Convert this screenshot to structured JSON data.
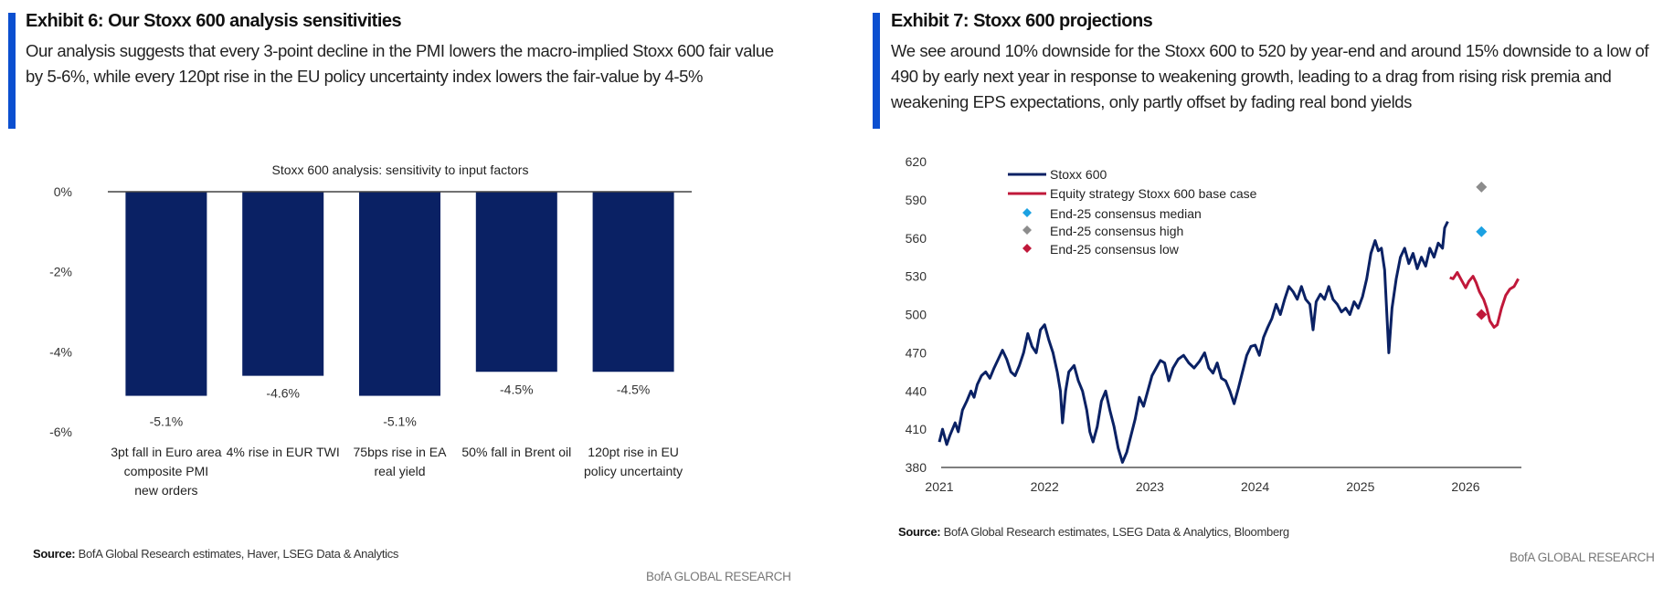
{
  "left": {
    "title": "Exhibit 6: Our Stoxx 600 analysis sensitivities",
    "subtitle": "Our analysis suggests that every 3-point decline in the PMI lowers the macro-implied Stoxx 600 fair value by 5-6%, while every 120pt rise in the EU policy uncertainty index lowers the fair-value by 4-5%",
    "source_label": "Source:",
    "source_text": "BofA Global Research estimates, Haver, LSEG Data & Analytics",
    "brand": "BofA GLOBAL RESEARCH"
  },
  "right": {
    "title": "Exhibit 7: Stoxx 600 projections",
    "subtitle": "We see around 10% downside for the Stoxx 600 to 520 by year-end and around 15% downside to a low of 490 by early next year in response to weakening growth, leading to a drag from rising risk premia and weakening EPS expectations, only partly offset by fading real bond yields",
    "source_label": "Source:",
    "source_text": "BofA Global Research estimates, LSEG Data & Analytics, Bloomberg",
    "brand": "BofA GLOBAL RESEARCH"
  },
  "chart_data": [
    {
      "type": "bar",
      "title": "Stoxx 600 analysis: sensitivity to input factors",
      "categories": [
        [
          "3pt fall in Euro area",
          "composite PMI",
          "new orders"
        ],
        [
          "4% rise in EUR TWI"
        ],
        [
          "75bps rise in EA",
          "real yield"
        ],
        [
          "50% fall in Brent oil"
        ],
        [
          "120pt rise in EU",
          "policy uncertainty"
        ]
      ],
      "values": [
        -5.1,
        -4.6,
        -5.1,
        -4.5,
        -4.5
      ],
      "data_labels": [
        "-5.1%",
        "-4.6%",
        "-5.1%",
        "-4.5%",
        "-4.5%"
      ],
      "ylim": [
        -6,
        0
      ],
      "yticks": [
        0,
        -2,
        -4,
        -6
      ],
      "ytick_labels": [
        "0%",
        "-2%",
        "-4%",
        "-6%"
      ],
      "color": "#0a2164",
      "grid": false
    },
    {
      "type": "line",
      "xlim": [
        2021,
        2026.7
      ],
      "ylim": [
        380,
        620
      ],
      "yticks": [
        620,
        590,
        560,
        530,
        500,
        470,
        440,
        410,
        380
      ],
      "xticks": [
        2021,
        2022,
        2023,
        2024,
        2025,
        2026
      ],
      "xtick_labels": [
        "2021",
        "2022",
        "2023",
        "2024",
        "2025",
        "2026"
      ],
      "legend_position": "top-left",
      "grid": false,
      "series": [
        {
          "name": "Stoxx 600",
          "color": "#0a2164",
          "points": [
            [
              2021.0,
              400
            ],
            [
              2021.03,
              410
            ],
            [
              2021.07,
              398
            ],
            [
              2021.1,
              405
            ],
            [
              2021.15,
              415
            ],
            [
              2021.18,
              408
            ],
            [
              2021.22,
              425
            ],
            [
              2021.26,
              432
            ],
            [
              2021.3,
              440
            ],
            [
              2021.33,
              435
            ],
            [
              2021.36,
              445
            ],
            [
              2021.4,
              452
            ],
            [
              2021.44,
              455
            ],
            [
              2021.48,
              450
            ],
            [
              2021.52,
              458
            ],
            [
              2021.56,
              465
            ],
            [
              2021.6,
              472
            ],
            [
              2021.64,
              465
            ],
            [
              2021.68,
              455
            ],
            [
              2021.72,
              452
            ],
            [
              2021.76,
              460
            ],
            [
              2021.8,
              470
            ],
            [
              2021.84,
              485
            ],
            [
              2021.88,
              475
            ],
            [
              2021.92,
              470
            ],
            [
              2021.96,
              488
            ],
            [
              2022.0,
              492
            ],
            [
              2022.04,
              480
            ],
            [
              2022.08,
              470
            ],
            [
              2022.12,
              455
            ],
            [
              2022.15,
              440
            ],
            [
              2022.17,
              415
            ],
            [
              2022.2,
              440
            ],
            [
              2022.23,
              455
            ],
            [
              2022.28,
              460
            ],
            [
              2022.32,
              448
            ],
            [
              2022.36,
              440
            ],
            [
              2022.4,
              425
            ],
            [
              2022.43,
              408
            ],
            [
              2022.46,
              400
            ],
            [
              2022.5,
              412
            ],
            [
              2022.54,
              432
            ],
            [
              2022.58,
              440
            ],
            [
              2022.62,
              425
            ],
            [
              2022.66,
              412
            ],
            [
              2022.7,
              395
            ],
            [
              2022.74,
              384
            ],
            [
              2022.78,
              392
            ],
            [
              2022.82,
              405
            ],
            [
              2022.86,
              418
            ],
            [
              2022.9,
              435
            ],
            [
              2022.94,
              428
            ],
            [
              2022.98,
              440
            ],
            [
              2023.02,
              452
            ],
            [
              2023.06,
              458
            ],
            [
              2023.1,
              464
            ],
            [
              2023.14,
              462
            ],
            [
              2023.18,
              448
            ],
            [
              2023.22,
              458
            ],
            [
              2023.27,
              465
            ],
            [
              2023.32,
              468
            ],
            [
              2023.37,
              462
            ],
            [
              2023.42,
              458
            ],
            [
              2023.47,
              463
            ],
            [
              2023.52,
              470
            ],
            [
              2023.56,
              458
            ],
            [
              2023.6,
              454
            ],
            [
              2023.64,
              462
            ],
            [
              2023.68,
              450
            ],
            [
              2023.72,
              448
            ],
            [
              2023.76,
              440
            ],
            [
              2023.8,
              430
            ],
            [
              2023.84,
              442
            ],
            [
              2023.88,
              455
            ],
            [
              2023.92,
              468
            ],
            [
              2023.96,
              475
            ],
            [
              2024.0,
              476
            ],
            [
              2024.04,
              468
            ],
            [
              2024.08,
              482
            ],
            [
              2024.12,
              490
            ],
            [
              2024.16,
              497
            ],
            [
              2024.2,
              508
            ],
            [
              2024.24,
              500
            ],
            [
              2024.28,
              512
            ],
            [
              2024.32,
              522
            ],
            [
              2024.36,
              518
            ],
            [
              2024.4,
              512
            ],
            [
              2024.44,
              522
            ],
            [
              2024.48,
              512
            ],
            [
              2024.52,
              508
            ],
            [
              2024.55,
              488
            ],
            [
              2024.58,
              510
            ],
            [
              2024.62,
              516
            ],
            [
              2024.66,
              512
            ],
            [
              2024.7,
              522
            ],
            [
              2024.74,
              512
            ],
            [
              2024.78,
              508
            ],
            [
              2024.82,
              502
            ],
            [
              2024.86,
              505
            ],
            [
              2024.9,
              500
            ],
            [
              2024.94,
              510
            ],
            [
              2024.98,
              505
            ],
            [
              2025.02,
              514
            ],
            [
              2025.06,
              528
            ],
            [
              2025.1,
              548
            ],
            [
              2025.14,
              558
            ],
            [
              2025.17,
              550
            ],
            [
              2025.2,
              552
            ],
            [
              2025.23,
              535
            ],
            [
              2025.27,
              470
            ],
            [
              2025.3,
              505
            ],
            [
              2025.34,
              528
            ],
            [
              2025.38,
              545
            ],
            [
              2025.42,
              552
            ],
            [
              2025.46,
              540
            ],
            [
              2025.5,
              548
            ],
            [
              2025.54,
              536
            ],
            [
              2025.58,
              545
            ],
            [
              2025.62,
              538
            ],
            [
              2025.66,
              552
            ],
            [
              2025.7,
              545
            ],
            [
              2025.74,
              556
            ],
            [
              2025.78,
              552
            ],
            [
              2025.8,
              568
            ],
            [
              2025.83,
              573
            ]
          ]
        },
        {
          "name": "Equity strategy Stoxx 600 base case",
          "color": "#c0183a",
          "points": [
            [
              2025.85,
              529
            ],
            [
              2025.88,
              528
            ],
            [
              2025.92,
              533
            ],
            [
              2025.96,
              527
            ],
            [
              2026.0,
              521
            ],
            [
              2026.03,
              526
            ],
            [
              2026.07,
              530
            ],
            [
              2026.1,
              525
            ],
            [
              2026.13,
              518
            ],
            [
              2026.17,
              512
            ],
            [
              2026.2,
              505
            ],
            [
              2026.23,
              495
            ],
            [
              2026.27,
              490
            ],
            [
              2026.3,
              492
            ],
            [
              2026.34,
              505
            ],
            [
              2026.38,
              515
            ],
            [
              2026.42,
              520
            ],
            [
              2026.46,
              522
            ],
            [
              2026.5,
              528
            ]
          ]
        }
      ],
      "markers": [
        {
          "name": "End-25 consensus median",
          "color": "#1ba1e2",
          "x": 2026.15,
          "y": 565
        },
        {
          "name": "End-25 consensus high",
          "color": "#8c8c8c",
          "x": 2026.15,
          "y": 600
        },
        {
          "name": "End-25 consensus low",
          "color": "#c0183a",
          "x": 2026.15,
          "y": 500
        }
      ]
    }
  ]
}
